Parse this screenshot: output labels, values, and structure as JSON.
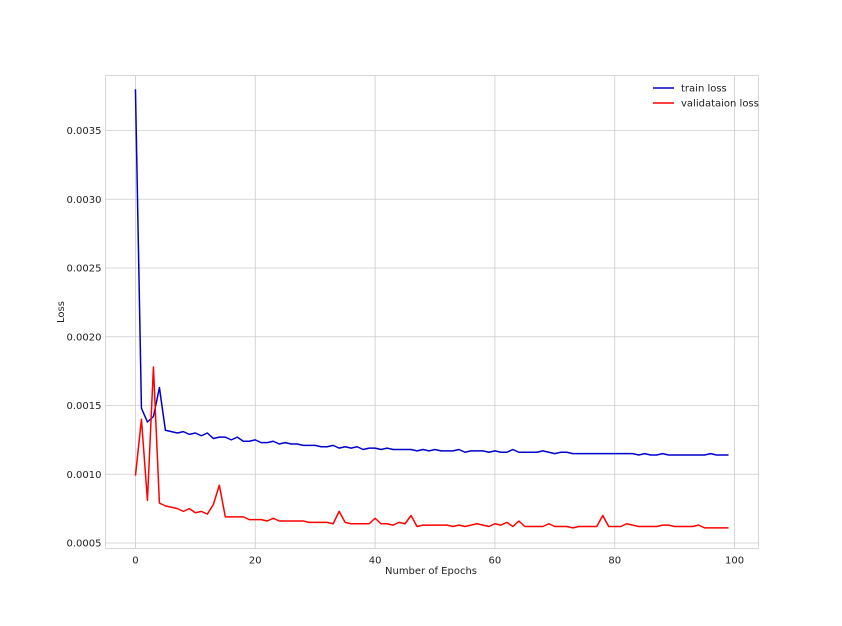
{
  "chart_data": {
    "type": "line",
    "title": "",
    "xlabel": "Number of Epochs",
    "ylabel": "Loss",
    "xlim": [
      -5,
      104
    ],
    "ylim": [
      0.00046,
      0.0039
    ],
    "xticks": [
      0,
      20,
      40,
      60,
      80,
      100
    ],
    "xtick_labels": [
      "0",
      "20",
      "40",
      "60",
      "80",
      "100"
    ],
    "yticks": [
      0.0005,
      0.001,
      0.0015,
      0.002,
      0.0025,
      0.003,
      0.0035
    ],
    "ytick_labels": [
      "0.0005",
      "0.0010",
      "0.0015",
      "0.0020",
      "0.0025",
      "0.0030",
      "0.0035"
    ],
    "grid": true,
    "legend_position": "top-right",
    "series": [
      {
        "name": "train loss",
        "color": "#0000cc",
        "values": [
          0.0038,
          0.00148,
          0.00138,
          0.00142,
          0.00163,
          0.00132,
          0.00131,
          0.0013,
          0.00131,
          0.00129,
          0.0013,
          0.00128,
          0.0013,
          0.00126,
          0.00127,
          0.00127,
          0.00125,
          0.00127,
          0.00124,
          0.00124,
          0.00125,
          0.00123,
          0.00123,
          0.00124,
          0.00122,
          0.00123,
          0.00122,
          0.00122,
          0.00121,
          0.00121,
          0.00121,
          0.0012,
          0.0012,
          0.00121,
          0.00119,
          0.0012,
          0.00119,
          0.0012,
          0.00118,
          0.00119,
          0.00119,
          0.00118,
          0.00119,
          0.00118,
          0.00118,
          0.00118,
          0.00118,
          0.00117,
          0.00118,
          0.00117,
          0.00118,
          0.00117,
          0.00117,
          0.00117,
          0.00118,
          0.00116,
          0.00117,
          0.00117,
          0.00117,
          0.00116,
          0.00117,
          0.00116,
          0.00116,
          0.00118,
          0.00116,
          0.00116,
          0.00116,
          0.00116,
          0.00117,
          0.00116,
          0.00115,
          0.00116,
          0.00116,
          0.00115,
          0.00115,
          0.00115,
          0.00115,
          0.00115,
          0.00115,
          0.00115,
          0.00115,
          0.00115,
          0.00115,
          0.00115,
          0.00114,
          0.00115,
          0.00114,
          0.00114,
          0.00115,
          0.00114,
          0.00114,
          0.00114,
          0.00114,
          0.00114,
          0.00114,
          0.00114,
          0.00115,
          0.00114,
          0.00114,
          0.00114
        ]
      },
      {
        "name": "validataion loss",
        "color": "#ff0000",
        "values": [
          0.00099,
          0.0014,
          0.00081,
          0.00178,
          0.00079,
          0.00077,
          0.00076,
          0.00075,
          0.00073,
          0.00075,
          0.00072,
          0.00073,
          0.00071,
          0.00078,
          0.00092,
          0.00069,
          0.00069,
          0.00069,
          0.00069,
          0.00067,
          0.00067,
          0.00067,
          0.00066,
          0.00068,
          0.00066,
          0.00066,
          0.00066,
          0.00066,
          0.00066,
          0.00065,
          0.00065,
          0.00065,
          0.00065,
          0.00064,
          0.00073,
          0.00065,
          0.00064,
          0.00064,
          0.00064,
          0.00064,
          0.00068,
          0.00064,
          0.00064,
          0.00063,
          0.00065,
          0.00064,
          0.0007,
          0.00062,
          0.00063,
          0.00063,
          0.00063,
          0.00063,
          0.00063,
          0.00062,
          0.00063,
          0.00062,
          0.00063,
          0.00064,
          0.00063,
          0.00062,
          0.00064,
          0.00063,
          0.00065,
          0.00062,
          0.00066,
          0.00062,
          0.00062,
          0.00062,
          0.00062,
          0.00064,
          0.00062,
          0.00062,
          0.00062,
          0.00061,
          0.00062,
          0.00062,
          0.00062,
          0.00062,
          0.0007,
          0.00062,
          0.00062,
          0.00062,
          0.00064,
          0.00063,
          0.00062,
          0.00062,
          0.00062,
          0.00062,
          0.00063,
          0.00063,
          0.00062,
          0.00062,
          0.00062,
          0.00062,
          0.00063,
          0.00061,
          0.00061,
          0.00061,
          0.00061,
          0.00061
        ]
      }
    ]
  }
}
